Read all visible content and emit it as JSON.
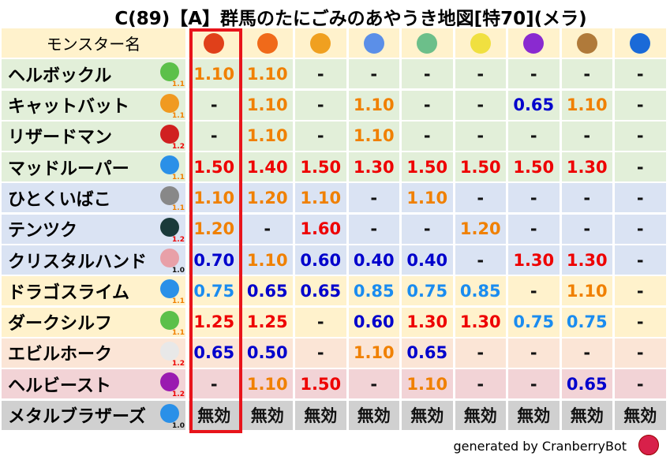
{
  "title": "C(89)【A】群馬のたにごみのあやうき地図[特70](メラ)",
  "header": {
    "name_label": "モンスター名",
    "elements": [
      {
        "icon": "mera-fire-icon",
        "color": "#e0401a"
      },
      {
        "icon": "gira-flame-icon",
        "color": "#f06a1a"
      },
      {
        "icon": "io-explosion-icon",
        "color": "#f0a020"
      },
      {
        "icon": "hyado-ice-icon",
        "color": "#5b8fe8"
      },
      {
        "icon": "bagi-wind-icon",
        "color": "#6cbf8a"
      },
      {
        "icon": "dein-light-icon",
        "color": "#f0e040"
      },
      {
        "icon": "dorudo-dark-icon",
        "color": "#8a2ad0"
      },
      {
        "icon": "earth-icon",
        "color": "#b07a3a"
      },
      {
        "icon": "water-icon",
        "color": "#1a6ad8"
      }
    ]
  },
  "colors": {
    "green": "#e2efd9",
    "blue": "#dae3f3",
    "yellow": "#fff2cc",
    "peach": "#fbe5d6",
    "pink": "#f2d3d6",
    "gray": "#d0d0d0",
    "header": "#fff2cc",
    "red": "#ee0000",
    "orange": "#f08000",
    "lightblue": "#1a8cf0",
    "darkblue": "#0000cc",
    "highlight": "#e8141b"
  },
  "rows": [
    {
      "name": "ヘルボックル",
      "icon": "leaf-icon",
      "icon_color": "#5cc04a",
      "mult": "1.1",
      "bg": "green",
      "values": [
        "1.10",
        "1.10",
        "-",
        "-",
        "-",
        "-",
        "-",
        "-",
        "-"
      ]
    },
    {
      "name": "キャットバット",
      "icon": "paw-icon",
      "icon_color": "#f09a20",
      "mult": "1.1",
      "bg": "green",
      "values": [
        "-",
        "1.10",
        "-",
        "1.10",
        "-",
        "-",
        "0.65",
        "1.10",
        "-"
      ]
    },
    {
      "name": "リザードマン",
      "icon": "dragon-icon",
      "icon_color": "#d02020",
      "mult": "1.2",
      "bg": "green",
      "values": [
        "-",
        "1.10",
        "-",
        "1.10",
        "-",
        "-",
        "-",
        "-",
        "-"
      ]
    },
    {
      "name": "マッドルーパー",
      "icon": "drop-icon",
      "icon_color": "#2a90e8",
      "mult": "1.1",
      "bg": "green",
      "values": [
        "1.50",
        "1.40",
        "1.50",
        "1.30",
        "1.50",
        "1.50",
        "1.50",
        "1.30",
        "-"
      ]
    },
    {
      "name": "ひとくいばこ",
      "icon": "brick-icon",
      "icon_color": "#888888",
      "mult": "1.1",
      "bg": "blue",
      "values": [
        "1.10",
        "1.20",
        "1.10",
        "-",
        "1.10",
        "-",
        "-",
        "-",
        "-"
      ]
    },
    {
      "name": "テンツク",
      "icon": "bug-icon",
      "icon_color": "#1a3a3a",
      "mult": "1.2",
      "bg": "blue",
      "values": [
        "1.20",
        "-",
        "1.60",
        "-",
        "-",
        "1.20",
        "-",
        "-",
        "-"
      ]
    },
    {
      "name": "クリスタルハンド",
      "icon": "skull-icon",
      "icon_color": "#e8a0a8",
      "mult": "1.0",
      "bg": "blue",
      "values": [
        "0.70",
        "1.10",
        "0.60",
        "0.40",
        "0.40",
        "-",
        "1.30",
        "1.30",
        "-"
      ]
    },
    {
      "name": "ドラゴスライム",
      "icon": "slime-icon",
      "icon_color": "#2a90e8",
      "mult": "1.1",
      "bg": "yellow",
      "values": [
        "0.75",
        "0.65",
        "0.65",
        "0.85",
        "0.75",
        "0.85",
        "-",
        "1.10",
        "-"
      ]
    },
    {
      "name": "ダークシルフ",
      "icon": "leaf-icon",
      "icon_color": "#5cc04a",
      "mult": "1.1",
      "bg": "yellow",
      "values": [
        "1.25",
        "1.25",
        "-",
        "0.60",
        "1.30",
        "1.30",
        "0.75",
        "0.75",
        "-"
      ]
    },
    {
      "name": "エビルホーク",
      "icon": "wing-icon",
      "icon_color": "#e8e8e8",
      "mult": "1.2",
      "bg": "peach",
      "values": [
        "0.65",
        "0.50",
        "-",
        "1.10",
        "0.65",
        "-",
        "-",
        "-",
        "-"
      ]
    },
    {
      "name": "ヘルビースト",
      "icon": "trident-icon",
      "icon_color": "#9a1ab0",
      "mult": "1.2",
      "bg": "pink",
      "values": [
        "-",
        "1.10",
        "1.50",
        "-",
        "1.10",
        "-",
        "-",
        "0.65",
        "-"
      ]
    },
    {
      "name": "メタルブラザーズ",
      "icon": "slime-icon",
      "icon_color": "#2a90e8",
      "mult": "1.0",
      "bg": "gray",
      "values": [
        "無効",
        "無効",
        "無効",
        "無効",
        "無効",
        "無効",
        "無効",
        "無効",
        "無効"
      ]
    }
  ],
  "footer": {
    "text": "generated by CranberryBot",
    "icon": "cranberry-bot-icon"
  }
}
